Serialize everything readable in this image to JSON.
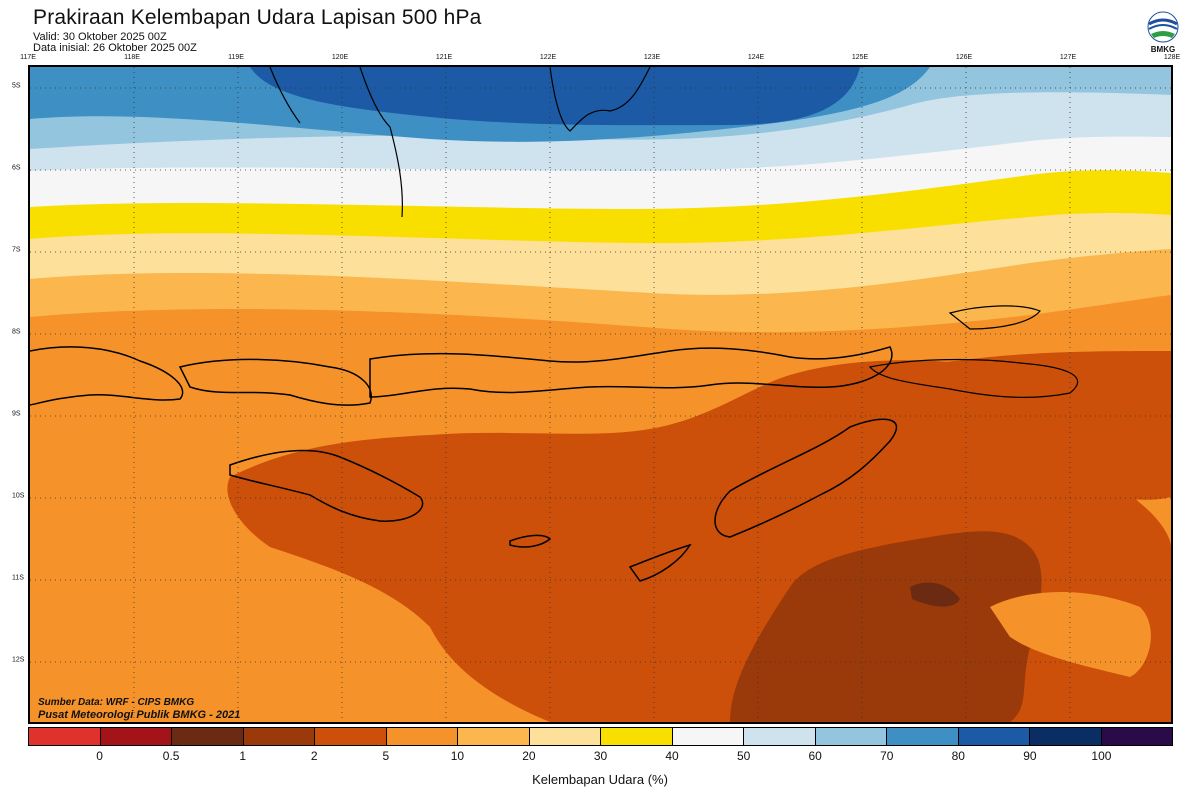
{
  "header": {
    "title": "Prakiraan Kelembapan Udara Lapisan 500 hPa",
    "valid": "Valid: 30 Oktober 2025 00Z",
    "init": "Data inisial: 26 Oktober 2025 00Z"
  },
  "logo": {
    "text": "BMKG",
    "icon": "bmkg-logo-icon"
  },
  "map": {
    "lon_labels": [
      "117E",
      "118E",
      "119E",
      "120E",
      "121E",
      "122E",
      "123E",
      "124E",
      "125E",
      "126E",
      "127E",
      "128E"
    ],
    "lat_labels": [
      "5S",
      "6S",
      "7S",
      "8S",
      "9S",
      "10S",
      "11S",
      "12S"
    ],
    "credit_source": "Sumber Data: WRF - CIPS BMKG",
    "credit_org": "Pusat Meteorologi Publik BMKG - 2021"
  },
  "legend": {
    "title": "Kelembapan Udara (%)",
    "ticks": [
      "0",
      "0.5",
      "1",
      "2",
      "5",
      "10",
      "20",
      "30",
      "40",
      "50",
      "60",
      "70",
      "80",
      "90",
      "100"
    ],
    "colors": [
      "#e0322c",
      "#a31317",
      "#6b2a12",
      "#9a3a0b",
      "#cc4f0a",
      "#f5922a",
      "#fbb74e",
      "#fde09a",
      "#f9df00",
      "#f6f6f6",
      "#cfe3ef",
      "#93c5df",
      "#3e8fc4",
      "#1c5aa5",
      "#0a2e63",
      "#2b0a4a"
    ]
  }
}
